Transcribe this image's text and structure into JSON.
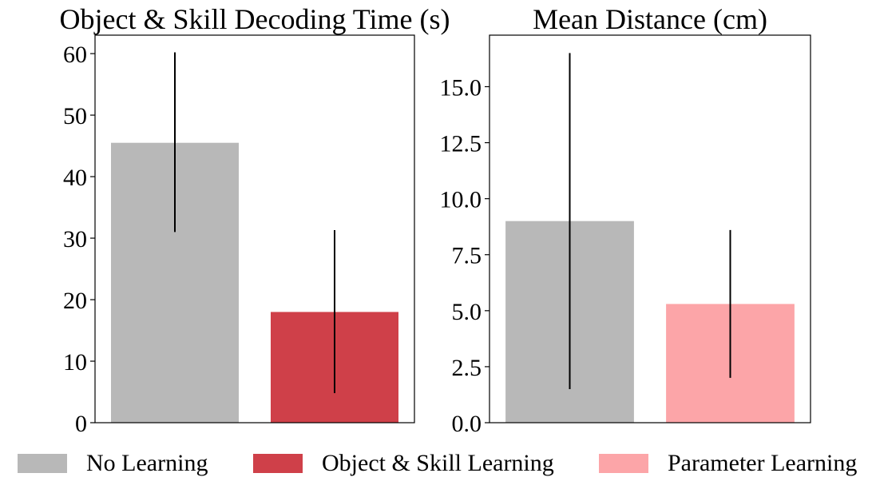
{
  "chart_data": [
    {
      "type": "bar",
      "title": "Object & Skill Decoding Time (s)",
      "xlabel": "",
      "ylabel": "",
      "ylim": [
        0,
        63
      ],
      "yticks": [
        0,
        10,
        20,
        30,
        40,
        50,
        60
      ],
      "ytick_labels": [
        "0",
        "10",
        "20",
        "30",
        "40",
        "50",
        "60"
      ],
      "grid": false,
      "series": [
        {
          "name": "No Learning",
          "color": "#b8b8b8",
          "value": 45.5,
          "err_low": 31.0,
          "err_high": 60.2
        },
        {
          "name": "Object & Skill Learning",
          "color": "#cf4049",
          "value": 18.0,
          "err_low": 4.8,
          "err_high": 31.3
        }
      ]
    },
    {
      "type": "bar",
      "title": "Mean Distance (cm)",
      "xlabel": "",
      "ylabel": "",
      "ylim": [
        0,
        17.3
      ],
      "yticks": [
        0,
        2.5,
        5,
        7.5,
        10,
        12.5,
        15
      ],
      "ytick_labels": [
        "0.0",
        "2.5",
        "5.0",
        "7.5",
        "10.0",
        "12.5",
        "15.0"
      ],
      "grid": false,
      "series": [
        {
          "name": "No Learning",
          "color": "#b8b8b8",
          "value": 9.0,
          "err_low": 1.5,
          "err_high": 16.5
        },
        {
          "name": "Parameter Learning",
          "color": "#fca5a8",
          "value": 5.3,
          "err_low": 2.0,
          "err_high": 8.6
        }
      ]
    }
  ],
  "legend": {
    "placement": "bottom",
    "items": [
      {
        "label": "No Learning",
        "color": "#b8b8b8"
      },
      {
        "label": "Object & Skill Learning",
        "color": "#cf4049"
      },
      {
        "label": "Parameter Learning",
        "color": "#fca5a8"
      }
    ]
  }
}
